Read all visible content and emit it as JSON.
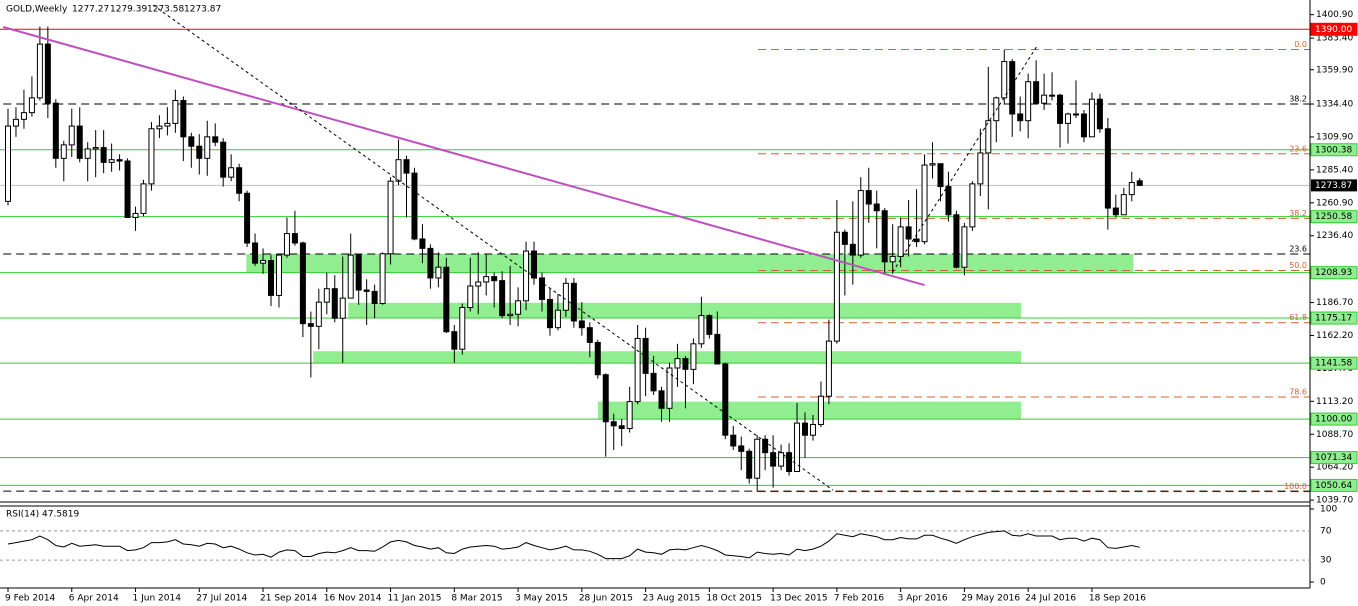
{
  "chart_data": {
    "type": "candlestick",
    "title": "GOLD,Weekly",
    "categories": [
      "9 Feb 2014",
      null,
      null,
      null,
      null,
      null,
      null,
      null,
      "6 Apr 2014",
      null,
      null,
      null,
      null,
      null,
      null,
      null,
      "1 Jun 2014",
      null,
      null,
      null,
      null,
      null,
      null,
      null,
      "27 Jul 2014",
      null,
      null,
      null,
      null,
      null,
      null,
      null,
      "21 Sep 2014",
      null,
      null,
      null,
      null,
      null,
      null,
      null,
      "16 Nov 2014",
      null,
      null,
      null,
      null,
      null,
      null,
      null,
      "11 Jan 2015",
      null,
      null,
      null,
      null,
      null,
      null,
      null,
      "8 Mar 2015",
      null,
      null,
      null,
      null,
      null,
      null,
      null,
      "3 May 2015",
      null,
      null,
      null,
      null,
      null,
      null,
      null,
      "28 Jun 2015",
      null,
      null,
      null,
      null,
      null,
      null,
      null,
      "23 Aug 2015",
      null,
      null,
      null,
      null,
      null,
      null,
      null,
      "18 Oct 2015",
      null,
      null,
      null,
      null,
      null,
      null,
      null,
      "13 Dec 2015",
      null,
      null,
      null,
      null,
      null,
      null,
      null,
      "7 Feb 2016",
      null,
      null,
      null,
      null,
      null,
      null,
      null,
      "3 Apr 2016",
      null,
      null,
      null,
      null,
      null,
      null,
      null,
      "29 May 2016",
      null,
      null,
      null,
      null,
      null,
      null,
      null,
      "24 Jul 2016",
      null,
      null,
      null,
      null,
      null,
      null,
      null,
      "18 Sep 2016",
      null,
      null,
      null,
      null,
      null,
      null
    ],
    "candles": [
      [
        1262,
        1331,
        1259,
        1318
      ],
      [
        1318,
        1332,
        1310,
        1323
      ],
      [
        1323,
        1345,
        1316,
        1328
      ],
      [
        1328,
        1355,
        1325,
        1339
      ],
      [
        1339,
        1392,
        1337,
        1379
      ],
      [
        1379,
        1392,
        1324,
        1335
      ],
      [
        1335,
        1338,
        1287,
        1294
      ],
      [
        1294,
        1307,
        1277,
        1304
      ],
      [
        1304,
        1331,
        1295,
        1318
      ],
      [
        1318,
        1332,
        1291,
        1294
      ],
      [
        1294,
        1306,
        1277,
        1301
      ],
      [
        1301,
        1315,
        1280,
        1302
      ],
      [
        1302,
        1315,
        1283,
        1291
      ],
      [
        1291,
        1305,
        1284,
        1293
      ],
      [
        1293,
        1297,
        1285,
        1292
      ],
      [
        1292,
        1294,
        1250,
        1250
      ],
      [
        1250,
        1258,
        1240,
        1253
      ],
      [
        1253,
        1278,
        1251,
        1275
      ],
      [
        1275,
        1321,
        1270,
        1316
      ],
      [
        1316,
        1326,
        1309,
        1318
      ],
      [
        1318,
        1332,
        1311,
        1320
      ],
      [
        1320,
        1345,
        1313,
        1337
      ],
      [
        1337,
        1340,
        1292,
        1310
      ],
      [
        1310,
        1313,
        1287,
        1303
      ],
      [
        1303,
        1312,
        1282,
        1294
      ],
      [
        1294,
        1322,
        1281,
        1310
      ],
      [
        1310,
        1320,
        1303,
        1306
      ],
      [
        1306,
        1309,
        1273,
        1280
      ],
      [
        1280,
        1297,
        1277,
        1287
      ],
      [
        1287,
        1290,
        1262,
        1268
      ],
      [
        1268,
        1270,
        1228,
        1231
      ],
      [
        1231,
        1238,
        1214,
        1216
      ],
      [
        1216,
        1227,
        1208,
        1218
      ],
      [
        1218,
        1222,
        1184,
        1192
      ],
      [
        1192,
        1222,
        1183,
        1222
      ],
      [
        1222,
        1250,
        1220,
        1238
      ],
      [
        1238,
        1255,
        1229,
        1231
      ],
      [
        1231,
        1232,
        1161,
        1171
      ],
      [
        1171,
        1180,
        1131,
        1169
      ],
      [
        1169,
        1197,
        1152,
        1187
      ],
      [
        1187,
        1209,
        1178,
        1197
      ],
      [
        1197,
        1207,
        1172,
        1175
      ],
      [
        1175,
        1221,
        1142,
        1190
      ],
      [
        1190,
        1238,
        1190,
        1222
      ],
      [
        1222,
        1223,
        1185,
        1196
      ],
      [
        1196,
        1204,
        1170,
        1195
      ],
      [
        1195,
        1200,
        1175,
        1186
      ],
      [
        1186,
        1224,
        1185,
        1223
      ],
      [
        1223,
        1280,
        1215,
        1277
      ],
      [
        1277,
        1308,
        1274,
        1293
      ],
      [
        1293,
        1296,
        1250,
        1283
      ],
      [
        1283,
        1287,
        1233,
        1234
      ],
      [
        1234,
        1245,
        1216,
        1227
      ],
      [
        1227,
        1230,
        1197,
        1205
      ],
      [
        1205,
        1224,
        1198,
        1213
      ],
      [
        1213,
        1220,
        1164,
        1165
      ],
      [
        1165,
        1170,
        1142,
        1152
      ],
      [
        1152,
        1186,
        1148,
        1183
      ],
      [
        1183,
        1220,
        1180,
        1199
      ],
      [
        1199,
        1224,
        1178,
        1202
      ],
      [
        1202,
        1223,
        1192,
        1206
      ],
      [
        1206,
        1209,
        1183,
        1203
      ],
      [
        1203,
        1210,
        1175,
        1177
      ],
      [
        1177,
        1214,
        1170,
        1178
      ],
      [
        1178,
        1198,
        1169,
        1188
      ],
      [
        1188,
        1232,
        1181,
        1225
      ],
      [
        1225,
        1232,
        1200,
        1205
      ],
      [
        1205,
        1209,
        1180,
        1189
      ],
      [
        1189,
        1197,
        1162,
        1168
      ],
      [
        1168,
        1193,
        1166,
        1181
      ],
      [
        1181,
        1205,
        1176,
        1201
      ],
      [
        1201,
        1205,
        1168,
        1173
      ],
      [
        1173,
        1187,
        1162,
        1168
      ],
      [
        1168,
        1172,
        1146,
        1157
      ],
      [
        1157,
        1159,
        1130,
        1133
      ],
      [
        1133,
        1134,
        1072,
        1098
      ],
      [
        1098,
        1104,
        1077,
        1095
      ],
      [
        1095,
        1100,
        1080,
        1093
      ],
      [
        1093,
        1124,
        1090,
        1113
      ],
      [
        1113,
        1170,
        1111,
        1160
      ],
      [
        1160,
        1168,
        1117,
        1134
      ],
      [
        1134,
        1147,
        1118,
        1121
      ],
      [
        1121,
        1124,
        1098,
        1108
      ],
      [
        1108,
        1142,
        1098,
        1138
      ],
      [
        1138,
        1156,
        1124,
        1145
      ],
      [
        1145,
        1147,
        1108,
        1137
      ],
      [
        1137,
        1160,
        1126,
        1156
      ],
      [
        1156,
        1191,
        1153,
        1177
      ],
      [
        1177,
        1178,
        1160,
        1163
      ],
      [
        1163,
        1180,
        1141,
        1141
      ],
      [
        1141,
        1142,
        1085,
        1088
      ],
      [
        1088,
        1095,
        1077,
        1080
      ],
      [
        1080,
        1087,
        1062,
        1076
      ],
      [
        1076,
        1078,
        1052,
        1056
      ],
      [
        1056,
        1088,
        1046,
        1085
      ],
      [
        1085,
        1088,
        1062,
        1075
      ],
      [
        1075,
        1088,
        1049,
        1065
      ],
      [
        1065,
        1081,
        1062,
        1075
      ],
      [
        1075,
        1082,
        1058,
        1061
      ],
      [
        1061,
        1112,
        1061,
        1097
      ],
      [
        1097,
        1105,
        1071,
        1088
      ],
      [
        1088,
        1103,
        1084,
        1096
      ],
      [
        1096,
        1128,
        1094,
        1117
      ],
      [
        1117,
        1174,
        1111,
        1158
      ],
      [
        1158,
        1263,
        1156,
        1239
      ],
      [
        1239,
        1241,
        1192,
        1230
      ],
      [
        1230,
        1262,
        1200,
        1222
      ],
      [
        1222,
        1280,
        1220,
        1270
      ],
      [
        1270,
        1287,
        1246,
        1260
      ],
      [
        1260,
        1270,
        1227,
        1255
      ],
      [
        1255,
        1257,
        1208,
        1217
      ],
      [
        1217,
        1245,
        1208,
        1221
      ],
      [
        1221,
        1250,
        1213,
        1243
      ],
      [
        1243,
        1263,
        1221,
        1234
      ],
      [
        1234,
        1271,
        1228,
        1232
      ],
      [
        1232,
        1297,
        1230,
        1289
      ],
      [
        1289,
        1306,
        1279,
        1290
      ],
      [
        1290,
        1290,
        1262,
        1273
      ],
      [
        1273,
        1284,
        1247,
        1252
      ],
      [
        1252,
        1255,
        1212,
        1213
      ],
      [
        1213,
        1246,
        1207,
        1243
      ],
      [
        1243,
        1277,
        1240,
        1275
      ],
      [
        1275,
        1316,
        1266,
        1298
      ],
      [
        1298,
        1362,
        1256,
        1322
      ],
      [
        1322,
        1340,
        1306,
        1339
      ],
      [
        1339,
        1375,
        1334,
        1366
      ],
      [
        1366,
        1368,
        1310,
        1327
      ],
      [
        1327,
        1340,
        1314,
        1322
      ],
      [
        1322,
        1357,
        1309,
        1351
      ],
      [
        1351,
        1367,
        1334,
        1335
      ],
      [
        1335,
        1357,
        1330,
        1341
      ],
      [
        1341,
        1358,
        1337,
        1341
      ],
      [
        1341,
        1342,
        1302,
        1320
      ],
      [
        1320,
        1328,
        1305,
        1327
      ],
      [
        1327,
        1352,
        1324,
        1327
      ],
      [
        1327,
        1330,
        1306,
        1310
      ],
      [
        1310,
        1343,
        1310,
        1338
      ],
      [
        1338,
        1342,
        1313,
        1316
      ],
      [
        1316,
        1324,
        1241,
        1257
      ],
      [
        1257,
        1267,
        1250,
        1252
      ],
      [
        1252,
        1272,
        1252,
        1267
      ],
      [
        1267,
        1284,
        1262,
        1276
      ],
      [
        1277.27,
        1279.39,
        1273.58,
        1273.87
      ]
    ],
    "up_color": "#ffffff",
    "down_color": "#000000",
    "last_price_color": "#c0c0c0",
    "ylim": [
      1038.3,
      1411.8
    ],
    "yticks": [
      {
        "value": 1400.9,
        "label": "1400.90"
      },
      {
        "value": 1383.4,
        "label": "1383.40"
      },
      {
        "value": 1359.9,
        "label": "1359.90"
      },
      {
        "value": 1334.4,
        "label": "1334.40"
      },
      {
        "value": 1309.9,
        "label": "1309.90"
      },
      {
        "value": 1285.4,
        "label": "1285.40"
      },
      {
        "value": 1260.9,
        "label": "1260.90"
      },
      {
        "value": 1236.4,
        "label": "1236.40"
      },
      {
        "value": 1186.7,
        "label": "1186.70"
      },
      {
        "value": 1162.2,
        "label": "1162.20"
      },
      {
        "value": 1137.7,
        "label": "1137.70"
      },
      {
        "value": 1113.2,
        "label": "1113.20"
      },
      {
        "value": 1088.7,
        "label": "1088.70"
      },
      {
        "value": 1064.2,
        "label": "1064.20"
      },
      {
        "value": 1039.7,
        "label": "1039.70"
      }
    ],
    "hlines": [
      {
        "value": 1390,
        "label": "1390.00",
        "color": "#ff0000"
      },
      {
        "value": 1300.38,
        "color": "#33cc33"
      },
      {
        "value": 1250.58,
        "color": "#33cc33"
      },
      {
        "value": 1208.93,
        "color": "#33cc33"
      },
      {
        "value": 1175.17,
        "color": "#33cc33"
      },
      {
        "value": 1141.58,
        "color": "#33cc33"
      },
      {
        "value": 1100,
        "label": "1100.00",
        "color": "#33cc33"
      },
      {
        "value": 1071.34,
        "color": "#33cc33"
      },
      {
        "value": 1050.64,
        "color": "#33cc33"
      }
    ],
    "zones": [
      {
        "from": 1208.93,
        "to": 1222.8,
        "start": 29.9,
        "end": 141.2
      },
      {
        "from": 1175.17,
        "to": 1186.5,
        "start": 42.7,
        "end": 127.1
      },
      {
        "from": 1141.58,
        "to": 1150.5,
        "start": 38.3,
        "end": 127.1
      },
      {
        "from": 1100,
        "to": 1113,
        "start": 74,
        "end": 127.1
      }
    ],
    "zone_color": "#90ee90",
    "fib_sets": [
      {
        "color": "#cc6633",
        "start": 94.1,
        "levels": [
          {
            "level": 0,
            "label": "0.0",
            "price": 1375
          },
          {
            "level": 23.6,
            "price": 1297.4
          },
          {
            "level": 38.2,
            "price": 1249.3
          },
          {
            "level": 50,
            "label": "50.0",
            "price": 1210.5
          },
          {
            "level": 61.8,
            "price": 1171.7
          },
          {
            "level": 78.6,
            "price": 1116.4
          },
          {
            "level": 100,
            "label": "100.0",
            "price": 1046
          }
        ]
      },
      {
        "color": "#000000",
        "start": -0.6,
        "levels": [
          {
            "level": 38.2,
            "price": 1334.4
          },
          {
            "level": 23.6,
            "price": 1222.8
          },
          {
            "price": 1046.4
          }
        ]
      }
    ],
    "trendlines": [
      {
        "from": [
          -0.6,
          1391.7
        ],
        "to": [
          115,
          1199.7
        ],
        "color": "#c050c0",
        "dashed": false
      },
      {
        "from": [
          18.2,
          1408
        ],
        "to": [
          103.5,
          1047.2
        ],
        "color": "#000000",
        "dashed": true
      },
      {
        "from": [
          111,
          1209.4
        ],
        "to": [
          129.2,
          1378.3
        ],
        "color": "#000000",
        "dashed": true
      }
    ],
    "indicator": {
      "type": "line",
      "name": "RSI(14)",
      "color": "#000000",
      "ylim": [
        0,
        100
      ],
      "yticks": [
        100,
        70,
        30,
        0
      ],
      "values": [
        52,
        54,
        56,
        58,
        63,
        58,
        50,
        48,
        53,
        49,
        50,
        51,
        49,
        49,
        49,
        43,
        44,
        47,
        54,
        54,
        55,
        58,
        52,
        51,
        49,
        53,
        52,
        47,
        49,
        45,
        40,
        37,
        38,
        34,
        41,
        44,
        43,
        35,
        35,
        39,
        41,
        40,
        43,
        47,
        43,
        43,
        42,
        48,
        55,
        57,
        55,
        50,
        48,
        45,
        47,
        40,
        39,
        45,
        48,
        49,
        50,
        49,
        45,
        46,
        48,
        54,
        50,
        47,
        44,
        46,
        49,
        44,
        44,
        42,
        38,
        32,
        32,
        32,
        36,
        45,
        41,
        40,
        38,
        44,
        45,
        44,
        47,
        50,
        47,
        43,
        37,
        36,
        35,
        33,
        41,
        39,
        38,
        39,
        37,
        45,
        43,
        45,
        49,
        56,
        66,
        64,
        62,
        66,
        64,
        62,
        58,
        58,
        61,
        59,
        59,
        64,
        64,
        60,
        57,
        53,
        58,
        62,
        65,
        68,
        69,
        70,
        64,
        63,
        66,
        63,
        63,
        63,
        58,
        60,
        60,
        56,
        60,
        58,
        47,
        46,
        48,
        50,
        47.5819
      ]
    }
  }
}
